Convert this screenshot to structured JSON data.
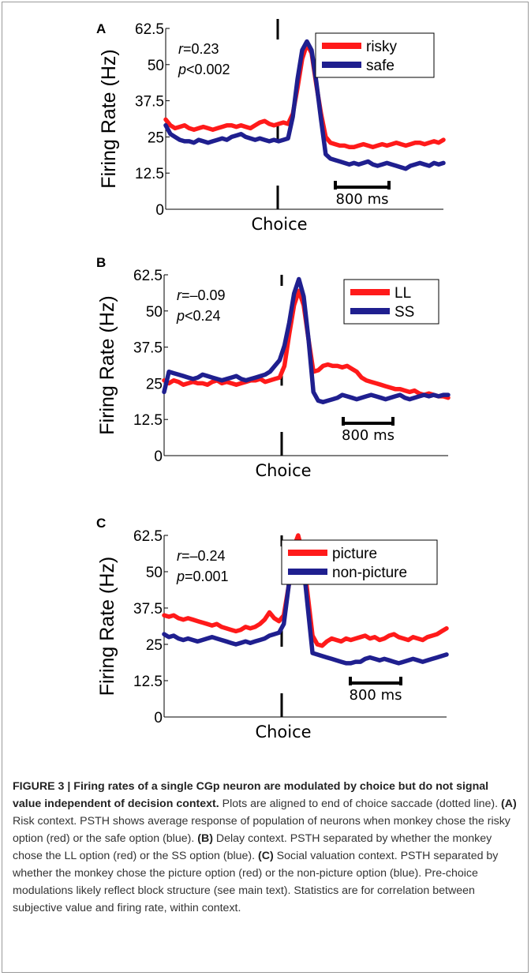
{
  "chart_data": [
    {
      "type": "line",
      "panel_label": "A",
      "ylabel": "Firing Rate (Hz)",
      "xlabel": "Choice",
      "ylim": [
        0,
        62.5
      ],
      "yticks": [
        "0",
        "12.5",
        "25",
        "37.5",
        "50",
        "62.5"
      ],
      "stats": {
        "r_label": "r",
        "r_value": "=0.23",
        "p_label": "p",
        "p_value": "<0.002"
      },
      "scale_bar": "800 ms",
      "legend_position": "top-right",
      "series": [
        {
          "name": "risky",
          "color": "#ff1a1a",
          "values": [
            31,
            29,
            28,
            28.5,
            29,
            28,
            27.5,
            28,
            28.5,
            28,
            27.5,
            28,
            28.5,
            29,
            29,
            28.5,
            29,
            28.5,
            28,
            29,
            30,
            30.5,
            29.5,
            29,
            29.5,
            30,
            29.5,
            33,
            42,
            52,
            57,
            54,
            43,
            33,
            25,
            23,
            22.5,
            22,
            22,
            21.5,
            21.5,
            22,
            22.5,
            22,
            21.5,
            22,
            22.5,
            22,
            22.5,
            23,
            22.5,
            22,
            22.5,
            23,
            23,
            22.5,
            23,
            23.5,
            23,
            24
          ]
        },
        {
          "name": "safe",
          "color": "#1f1f8f",
          "values": [
            29,
            26,
            25,
            24,
            23.5,
            23.5,
            23,
            24,
            23.5,
            23,
            23.5,
            24,
            24.5,
            24,
            25,
            25.5,
            26,
            25,
            24.5,
            24,
            24.5,
            24,
            23.5,
            24,
            23.5,
            24,
            24.5,
            32,
            45,
            55,
            58,
            55,
            44,
            31,
            19,
            17.5,
            17,
            16.5,
            16,
            15.5,
            16,
            15.5,
            16,
            16.5,
            15.5,
            15,
            15.5,
            16,
            15.5,
            15,
            14.5,
            14,
            15,
            15.5,
            16,
            15.5,
            15,
            16,
            15.5,
            16
          ]
        }
      ]
    },
    {
      "type": "line",
      "panel_label": "B",
      "ylabel": "Firing Rate (Hz)",
      "xlabel": "Choice",
      "ylim": [
        0,
        62.5
      ],
      "yticks": [
        "0",
        "12.5",
        "25",
        "37.5",
        "50",
        "62.5"
      ],
      "stats": {
        "r_label": "r",
        "r_value": "=–0.09",
        "p_label": "p",
        "p_value": "<0.24"
      },
      "scale_bar": "800 ms",
      "legend_position": "top-right",
      "series": [
        {
          "name": "LL",
          "color": "#ff1a1a",
          "values": [
            26,
            25,
            26,
            25.5,
            24.5,
            25,
            25.5,
            25,
            25,
            24.5,
            25.5,
            26,
            25,
            25.5,
            25,
            24.5,
            25,
            25.5,
            26,
            26,
            26.5,
            25.5,
            26,
            26.5,
            27,
            31,
            42,
            52,
            57,
            52,
            40,
            29,
            29.5,
            31,
            31.5,
            31,
            31,
            30.5,
            31,
            30,
            29,
            27,
            26,
            25.5,
            25,
            24.5,
            24,
            23.5,
            23,
            23,
            22.5,
            22,
            22.5,
            21.5,
            21,
            21.5,
            21,
            20.5,
            20.5,
            20
          ]
        },
        {
          "name": "SS",
          "color": "#1f1f8f",
          "values": [
            22,
            29,
            28.5,
            28,
            27.5,
            27,
            26.5,
            27,
            28,
            27.5,
            27,
            26.5,
            26,
            26.5,
            27,
            27.5,
            26.5,
            26,
            26.5,
            27,
            27.5,
            28,
            29,
            31,
            33,
            38,
            46,
            56,
            61,
            55,
            40,
            22,
            19,
            18.5,
            19,
            19.5,
            20,
            21,
            20.5,
            20,
            19.5,
            20,
            20.5,
            21,
            20.5,
            20,
            19.5,
            20,
            20.5,
            21,
            20,
            19.5,
            20,
            20.5,
            21,
            20.5,
            21,
            20.5,
            21,
            21
          ]
        }
      ]
    },
    {
      "type": "line",
      "panel_label": "C",
      "ylabel": "Firing Rate (Hz)",
      "xlabel": "Choice",
      "ylim": [
        0,
        62.5
      ],
      "yticks": [
        "0",
        "12.5",
        "25",
        "37.5",
        "50",
        "62.5"
      ],
      "stats": {
        "r_label": "r",
        "r_value": "=–0.24",
        "p_label": "p",
        "p_value": "=0.001"
      },
      "scale_bar": "800 ms",
      "legend_position": "top-right",
      "series": [
        {
          "name": "picture",
          "color": "#ff1a1a",
          "values": [
            35,
            34.5,
            35,
            34,
            33.5,
            34,
            33.5,
            33,
            32.5,
            32,
            31.5,
            32,
            31,
            30.5,
            30,
            29.5,
            30,
            31,
            30.5,
            31,
            32,
            33.5,
            36,
            34,
            33,
            35,
            45,
            58,
            62.5,
            56,
            42,
            28,
            25,
            24.5,
            26,
            27,
            26.5,
            26,
            27,
            26.5,
            27,
            27.5,
            28,
            27,
            27.5,
            26.5,
            27,
            28,
            28.5,
            27.5,
            27,
            26.5,
            27.5,
            27,
            26.5,
            27.5,
            28,
            28.5,
            29.5,
            30.5
          ]
        },
        {
          "name": "non-picture",
          "color": "#1f1f8f",
          "values": [
            28.5,
            27.5,
            28,
            27,
            26.5,
            27,
            26.5,
            26,
            26.5,
            27,
            27.5,
            27,
            26.5,
            26,
            25.5,
            25,
            25.5,
            26,
            25.5,
            26,
            26.5,
            27,
            28,
            28.5,
            29,
            32,
            45,
            55,
            60,
            54,
            38,
            22,
            21.5,
            21,
            20.5,
            20,
            19.5,
            19,
            18.5,
            18.5,
            19,
            19,
            20,
            20.5,
            20,
            19.5,
            20,
            19.5,
            19,
            18.5,
            19,
            19.5,
            20,
            19.5,
            19,
            19.5,
            20,
            20.5,
            21,
            21.5
          ]
        }
      ]
    }
  ],
  "caption": {
    "title": "FIGURE 3 | Firing rates of a single CGp neuron are modulated by choice but do not signal value independent of decision context.",
    "body_1": " Plots are aligned to end of choice saccade (dotted line). ",
    "label_A": "(A)",
    "text_A": " Risk context. PSTH shows average response of population of neurons when monkey chose the risky option (red) or the safe option (blue). ",
    "label_B": "(B)",
    "text_B": " Delay context. PSTH separated by whether the monkey chose the LL option (red) or the SS option (blue). ",
    "label_C": "(C)",
    "text_C": " Social valuation context. PSTH separated by whether the monkey chose the picture option (red) or the non-picture option (blue). Pre-choice modulations likely reflect block structure (see main text). Statistics are for correlation between subjective value and firing rate, within context."
  }
}
